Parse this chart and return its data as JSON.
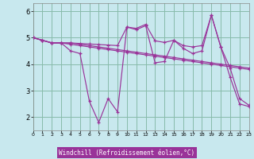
{
  "bg_color": "#c8e8ee",
  "grid_color": "#88bbaa",
  "line_color": "#993399",
  "xlabel": "Windchill (Refroidissement éolien,°C)",
  "xlim": [
    0,
    23
  ],
  "ylim": [
    1.5,
    6.3
  ],
  "yticks": [
    2,
    3,
    4,
    5,
    6
  ],
  "xticks": [
    0,
    1,
    2,
    3,
    4,
    5,
    6,
    7,
    8,
    9,
    10,
    11,
    12,
    13,
    14,
    15,
    16,
    17,
    18,
    19,
    20,
    21,
    22,
    23
  ],
  "lines": [
    [
      5.0,
      4.9,
      4.8,
      4.8,
      4.5,
      4.4,
      2.6,
      1.8,
      2.7,
      2.2,
      5.4,
      5.3,
      5.45,
      4.05,
      4.1,
      4.9,
      4.6,
      4.4,
      4.5,
      5.85,
      4.65,
      3.85,
      2.7,
      2.45
    ],
    [
      5.0,
      4.9,
      4.8,
      4.8,
      4.8,
      4.75,
      4.7,
      4.65,
      4.6,
      4.55,
      4.5,
      4.45,
      4.4,
      4.35,
      4.3,
      4.25,
      4.2,
      4.15,
      4.1,
      4.05,
      4.0,
      3.95,
      3.9,
      3.85
    ],
    [
      5.0,
      4.9,
      4.8,
      4.8,
      4.75,
      4.7,
      4.65,
      4.6,
      4.55,
      4.5,
      4.45,
      4.4,
      4.35,
      4.3,
      4.25,
      4.2,
      4.15,
      4.1,
      4.05,
      4.0,
      3.95,
      3.9,
      3.85,
      3.8
    ],
    [
      5.0,
      4.9,
      4.8,
      4.8,
      4.8,
      4.78,
      4.76,
      4.74,
      4.72,
      4.7,
      5.4,
      5.35,
      5.5,
      4.88,
      4.82,
      4.9,
      4.7,
      4.65,
      4.7,
      5.85,
      4.65,
      3.5,
      2.5,
      2.4
    ]
  ]
}
